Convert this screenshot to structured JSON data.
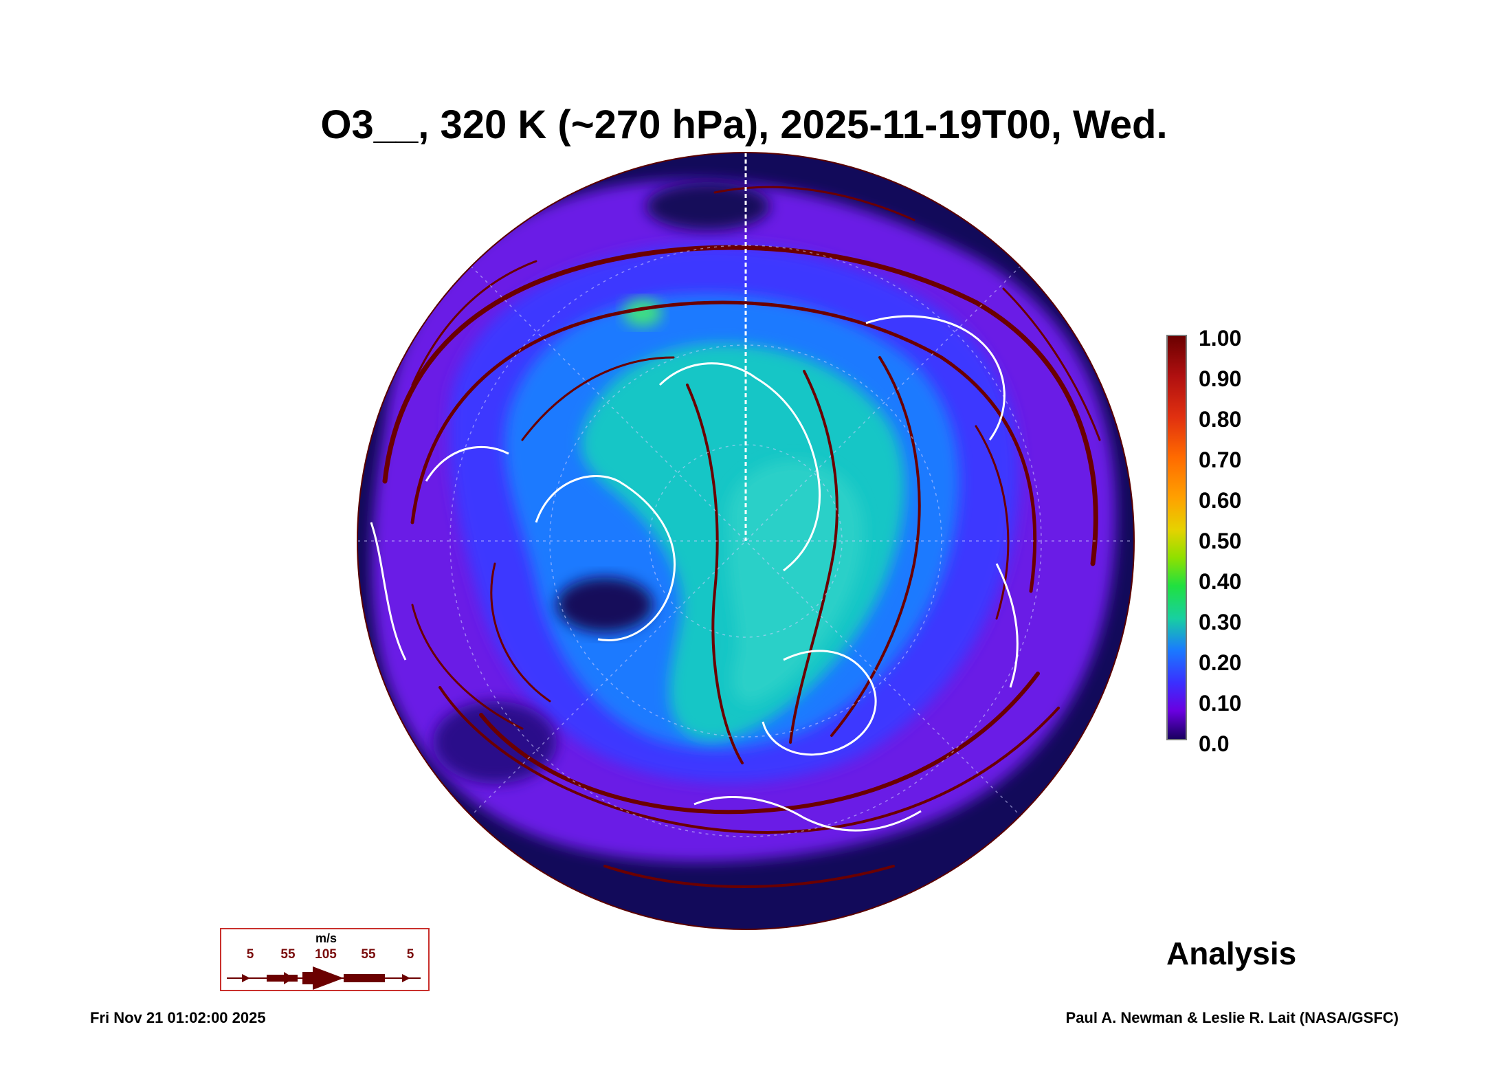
{
  "title": "O3__, 320 K (~270 hPa), 2025-11-19T00, Wed.",
  "colorbar": {
    "labels": [
      "1.00",
      "0.90",
      "0.80",
      "0.70",
      "0.60",
      "0.50",
      "0.40",
      "0.30",
      "0.20",
      "0.10",
      "0.0"
    ],
    "colors_top_to_bottom": [
      "#6b0000",
      "#b01010",
      "#e03010",
      "#ff6a00",
      "#ffa000",
      "#e6d200",
      "#8fe000",
      "#20e040",
      "#18d0a0",
      "#1a7aff",
      "#3a30ff",
      "#6a00e0",
      "#1a0060"
    ]
  },
  "map": {
    "projection": "north-polar-stereographic",
    "field_colors": {
      "background_dark": "#120a5a",
      "low": "#6a1ee6",
      "mid_low": "#3c38ff",
      "mid": "#1e7aff",
      "high": "#18c6c6",
      "peak": "#40e080",
      "streamlines": "#6b0000",
      "coastlines": "#ffffff"
    }
  },
  "wind_key": {
    "unit": "m/s",
    "labels": [
      "5",
      "55",
      "105",
      "55",
      "5"
    ]
  },
  "analysis_label": "Analysis",
  "footer": {
    "timestamp": "Fri Nov 21 01:02:00 2025",
    "credit": "Paul A. Newman & Leslie R. Lait (NASA/GSFC)"
  }
}
